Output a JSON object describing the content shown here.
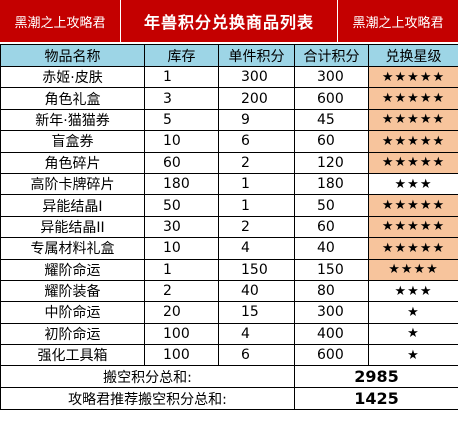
{
  "banner": {
    "left": "黑潮之上攻略君",
    "title": "年兽积分兑换商品列表",
    "right": "黑潮之上攻略君"
  },
  "headers": [
    "物品名称",
    "库存",
    "单件积分",
    "合计积分",
    "兑换星级"
  ],
  "rows": [
    {
      "name": "赤姬·皮肤",
      "stock": "1",
      "unit": "300",
      "total": "300",
      "stars": "★★★★★",
      "highlight": true
    },
    {
      "name": "角色礼盒",
      "stock": "3",
      "unit": "200",
      "total": "600",
      "stars": "★★★★★",
      "highlight": true
    },
    {
      "name": "新年·猫猫券",
      "stock": "5",
      "unit": "9",
      "total": "45",
      "stars": "★★★★★",
      "highlight": true
    },
    {
      "name": "盲盒券",
      "stock": "10",
      "unit": "6",
      "total": "60",
      "stars": "★★★★★",
      "highlight": true
    },
    {
      "name": "角色碎片",
      "stock": "60",
      "unit": "2",
      "total": "120",
      "stars": "★★★★★",
      "highlight": true
    },
    {
      "name": "高阶卡牌碎片",
      "stock": "180",
      "unit": "1",
      "total": "180",
      "stars": "★★★",
      "highlight": false
    },
    {
      "name": "异能结晶I",
      "stock": "50",
      "unit": "1",
      "total": "50",
      "stars": "★★★★★",
      "highlight": true
    },
    {
      "name": "异能结晶II",
      "stock": "30",
      "unit": "2",
      "total": "60",
      "stars": "★★★★★",
      "highlight": true
    },
    {
      "name": "专属材料礼盒",
      "stock": "10",
      "unit": "4",
      "total": "40",
      "stars": "★★★★★",
      "highlight": true
    },
    {
      "name": "耀阶命运",
      "stock": "1",
      "unit": "150",
      "total": "150",
      "stars": "★★★★",
      "highlight": true
    },
    {
      "name": "耀阶装备",
      "stock": "2",
      "unit": "40",
      "total": "80",
      "stars": "★★★",
      "highlight": false
    },
    {
      "name": "中阶命运",
      "stock": "20",
      "unit": "15",
      "total": "300",
      "stars": "★",
      "highlight": false
    },
    {
      "name": "初阶命运",
      "stock": "100",
      "unit": "4",
      "total": "400",
      "stars": "★",
      "highlight": false
    },
    {
      "name": "强化工具箱",
      "stock": "100",
      "unit": "6",
      "total": "600",
      "stars": "★",
      "highlight": false
    }
  ],
  "totals": [
    {
      "label": "搬空积分总和:",
      "value": "2985"
    },
    {
      "label": "攻略君推荐搬空积分总和:",
      "value": "1425"
    }
  ],
  "colors": {
    "banner": "#c40000",
    "header": "#9dd5e6",
    "highlight": "#f7c49c"
  }
}
